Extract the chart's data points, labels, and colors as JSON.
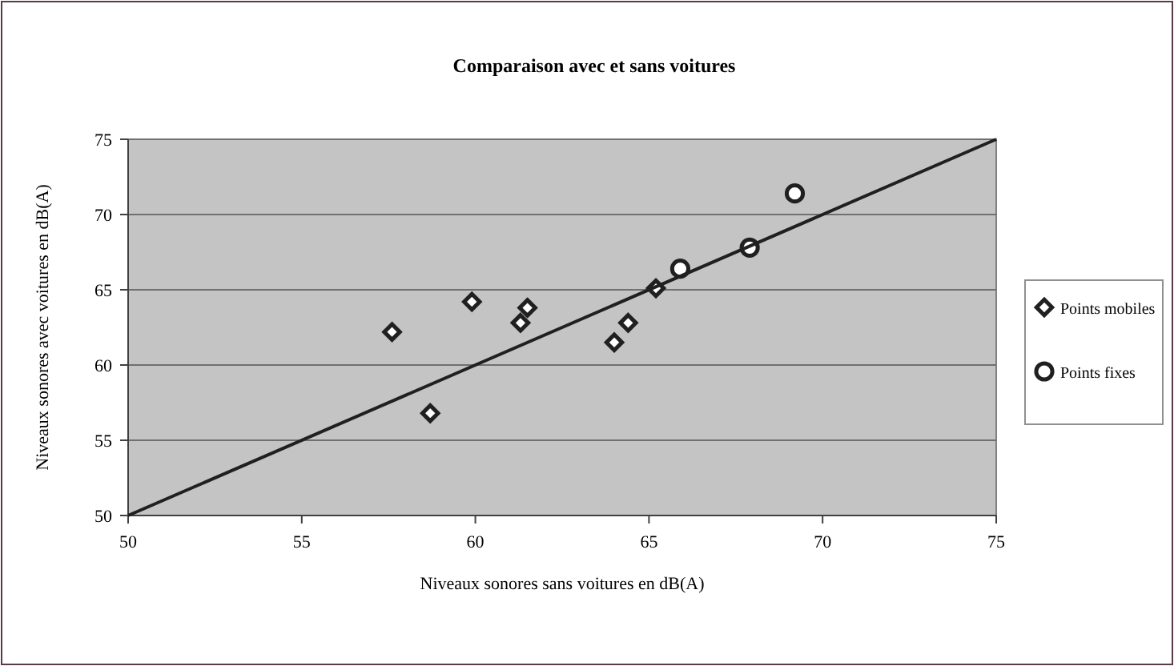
{
  "chart_data": {
    "type": "scatter",
    "title": "Comparaison avec et sans voitures",
    "xlabel": "Niveaux sonores sans voitures en dB(A)",
    "ylabel": "Niveaux sonores avec voitures en dB(A)",
    "xlim": [
      50,
      75
    ],
    "xticks": [
      50,
      55,
      60,
      65,
      70,
      75
    ],
    "ylim": [
      50,
      75
    ],
    "yticks": [
      50,
      55,
      60,
      65,
      70,
      75
    ],
    "grid": "y",
    "legend": "right",
    "series": [
      {
        "name": "Points mobiles",
        "color": "#202020",
        "marker": "diamond",
        "x": [
          57.6,
          58.7,
          59.9,
          61.3,
          61.5,
          64.0,
          64.4,
          65.2
        ],
        "values": [
          62.2,
          56.8,
          64.2,
          62.8,
          63.8,
          61.5,
          62.8,
          65.1
        ]
      },
      {
        "name": "Points fixes",
        "color": "#202020",
        "marker": "circle",
        "x": [
          65.9,
          67.9,
          69.2
        ],
        "values": [
          66.4,
          67.8,
          71.4
        ]
      },
      {
        "type": "line",
        "color": "#202020",
        "x": [
          50,
          75
        ],
        "values": [
          50,
          75
        ]
      }
    ]
  }
}
